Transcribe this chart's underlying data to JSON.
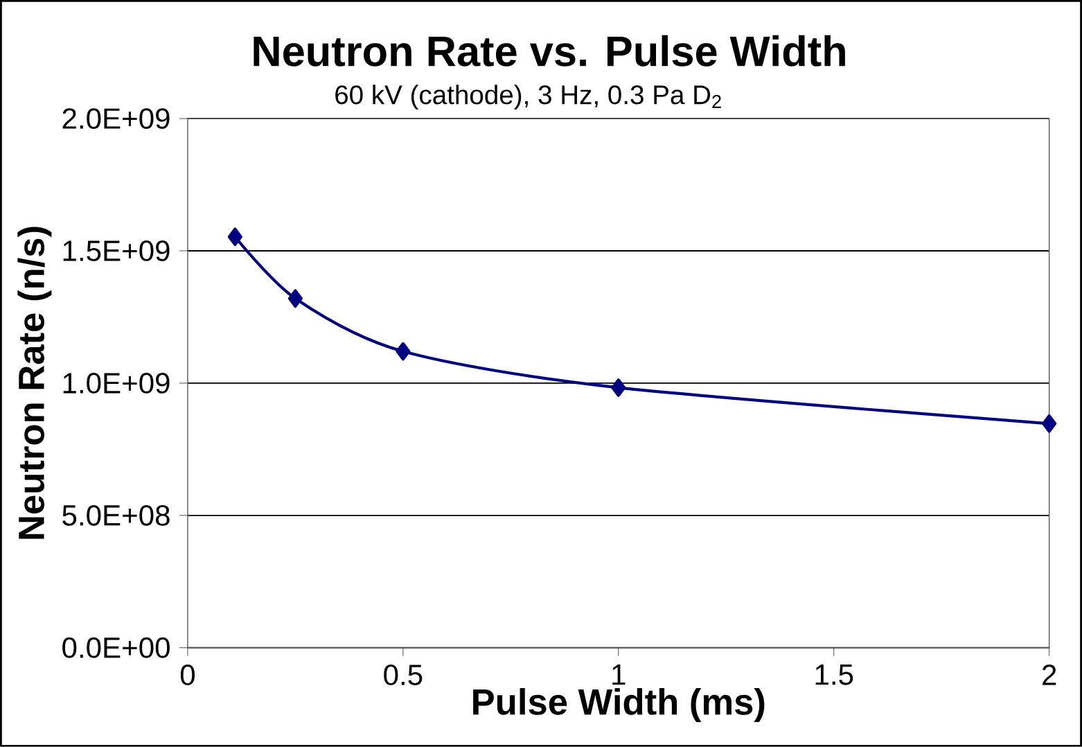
{
  "chart_data": {
    "type": "line",
    "title": "Neutron Rate vs. Pulse Width",
    "subtitle": "60 kV (cathode), 3 Hz, 0.3 Pa D$_{2}$",
    "xlabel": "Pulse Width (ms)",
    "ylabel": "Neutron Rate (n/s)",
    "x": [
      0.11,
      0.25,
      0.5,
      1,
      2
    ],
    "series": [
      {
        "color": "#000080",
        "values": [
          1553000000.0,
          1320000000.0,
          1120000000.0,
          983000000.0,
          847000000.0
        ]
      }
    ],
    "xlim": [
      0,
      2
    ],
    "xticks": [
      0,
      0.5,
      1,
      1.5,
      2
    ],
    "ylim": [
      0,
      2000000000.0
    ],
    "yticks": [
      {
        "value": 0,
        "label": "0.0E+00"
      },
      {
        "value": 500000000.0,
        "label": "5.0E+08"
      },
      {
        "value": 1000000000.0,
        "label": "1.0E+09"
      },
      {
        "value": 1500000000.0,
        "label": "1.5E+09"
      },
      {
        "value": 2000000000.0,
        "label": "2.0E+09"
      }
    ],
    "grid": "y",
    "marker": "diamond",
    "line_style": "solid"
  }
}
